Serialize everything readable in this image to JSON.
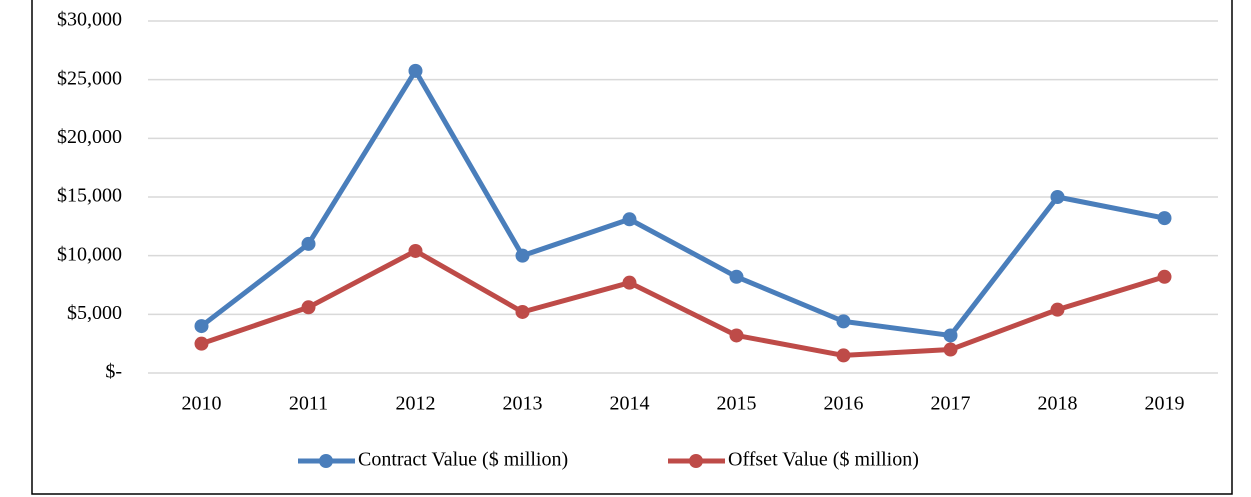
{
  "chart_data": {
    "type": "line",
    "categories": [
      "2010",
      "2011",
      "2012",
      "2013",
      "2014",
      "2015",
      "2016",
      "2017",
      "2018",
      "2019"
    ],
    "series": [
      {
        "name": "Contract Value ($ million)",
        "color": "#4a7ebb",
        "values": [
          4000,
          11000,
          25750,
          10000,
          13100,
          8200,
          4400,
          3200,
          15000,
          13200
        ]
      },
      {
        "name": "Offset Value ($ million)",
        "color": "#be4b48",
        "values": [
          2500,
          5600,
          10400,
          5200,
          7700,
          3200,
          1500,
          2000,
          5400,
          8200
        ]
      }
    ],
    "ylim": [
      0,
      30000
    ],
    "yticks": [
      {
        "value": 0,
        "label": "$-"
      },
      {
        "value": 5000,
        "label": "$5,000"
      },
      {
        "value": 10000,
        "label": "$10,000"
      },
      {
        "value": 15000,
        "label": "$15,000"
      },
      {
        "value": 20000,
        "label": "$20,000"
      },
      {
        "value": 25000,
        "label": "$25,000"
      },
      {
        "value": 30000,
        "label": "$30,000"
      }
    ],
    "grid": true,
    "legend": "bottom"
  }
}
